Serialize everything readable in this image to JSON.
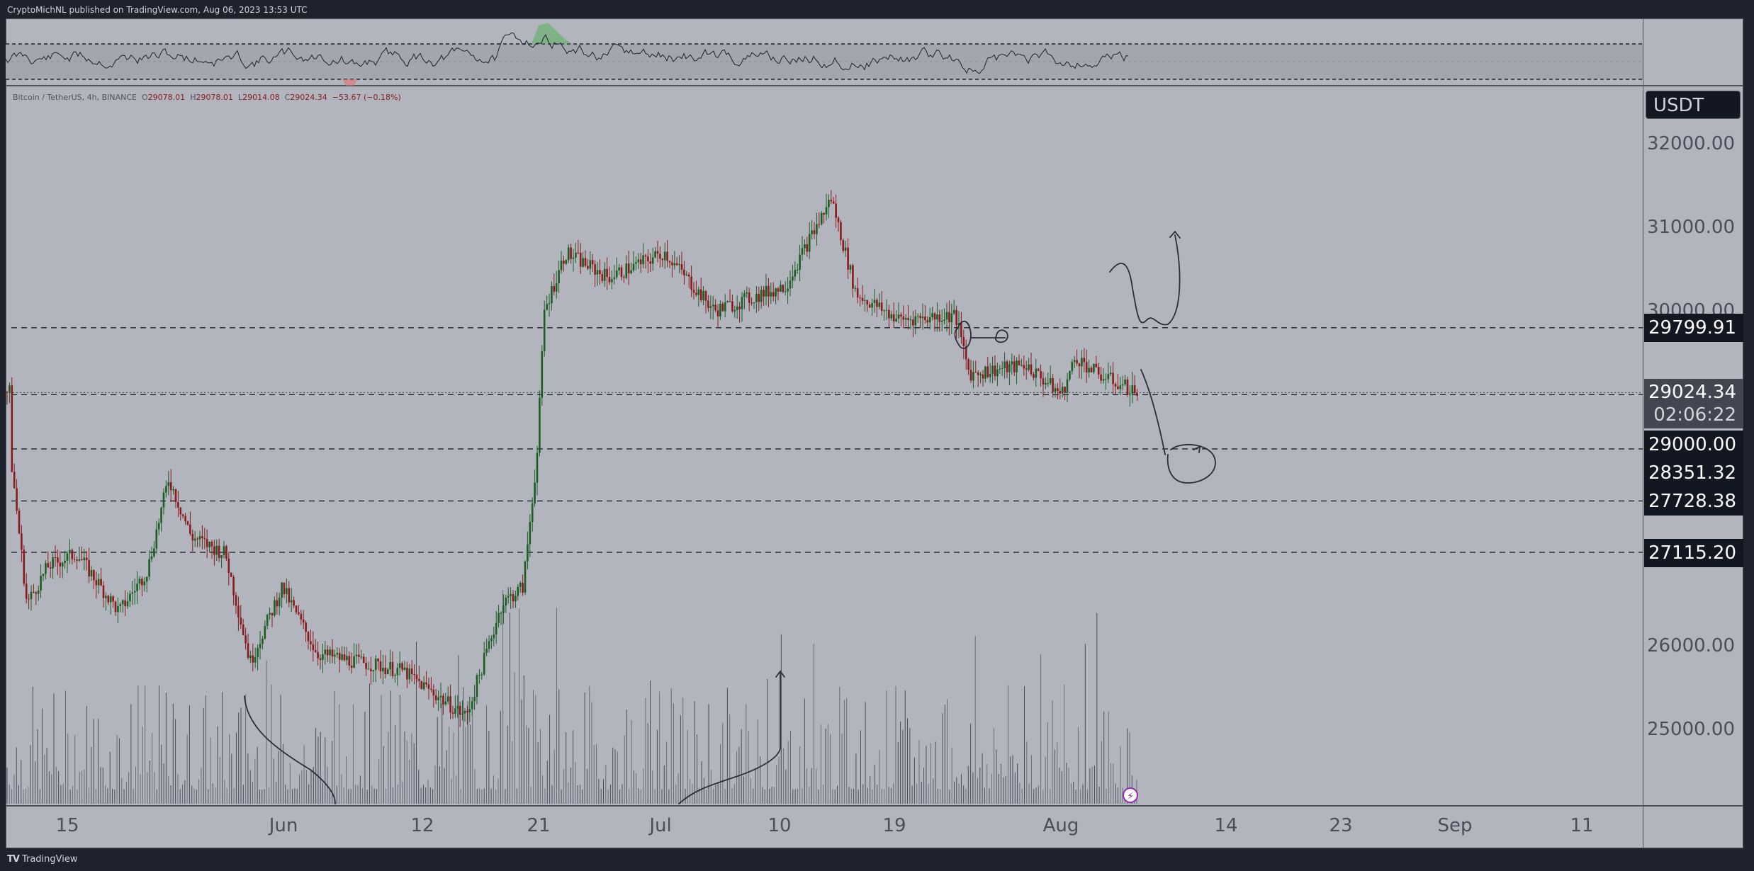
{
  "header": {
    "publisher_line": "CryptoMichNL published on TradingView.com, Aug 06, 2023 13:53 UTC"
  },
  "legend": {
    "symbol": "Bitcoin / TetherUS, 4h, BINANCE",
    "open_label": "O",
    "open": "29078.01",
    "high_label": "H",
    "high": "29078.01",
    "low_label": "L",
    "low": "29014.08",
    "close_label": "C",
    "close": "29024.34",
    "change": "−53.67 (−0.18%)"
  },
  "price_axis": {
    "currency": "USDT",
    "ticks": [
      "32000.00",
      "31000.00",
      "30000.00",
      "26000.00",
      "25000.00"
    ],
    "tags": [
      {
        "value": "29799.91"
      },
      {
        "value": "29024.34",
        "countdown": "02:06:22",
        "current": true
      },
      {
        "value": "29000.00"
      },
      {
        "value": "28351.32"
      },
      {
        "value": "27728.38"
      },
      {
        "value": "27115.20"
      }
    ]
  },
  "time_axis": {
    "ticks": [
      "15",
      "Jun",
      "12",
      "21",
      "Jul",
      "10",
      "19",
      "Aug",
      "14",
      "23",
      "Sep",
      "11"
    ]
  },
  "footer": {
    "brand": "TradingView"
  },
  "colors": {
    "background": "#b2b5be",
    "up": "#1b5e20",
    "down": "#8b1a1a",
    "frame": "#1e222d",
    "drawing": "#2a2e39"
  },
  "chart_data": {
    "type": "candlestick",
    "title": "Bitcoin / TetherUS, 4h, BINANCE",
    "xlabel": "",
    "ylabel": "USDT",
    "ylim": [
      24500,
      32700
    ],
    "x_ticks": [
      "15",
      "Jun",
      "12",
      "21",
      "Jul",
      "10",
      "19",
      "Aug",
      "14",
      "23",
      "Sep",
      "11"
    ],
    "y_ticks": [
      25000,
      26000,
      27000,
      28000,
      29000,
      30000,
      31000,
      32000
    ],
    "horizontal_levels": [
      29799.91,
      29000.0,
      28351.32,
      27728.38,
      27115.2
    ],
    "current_price": 29024.34,
    "path_points": [
      {
        "date": "May 12",
        "close": 28200
      },
      {
        "date": "May 14",
        "close": 26500
      },
      {
        "date": "May 15",
        "close": 26900
      },
      {
        "date": "May 20",
        "close": 27100
      },
      {
        "date": "May 24",
        "close": 26200
      },
      {
        "date": "May 27",
        "close": 26900
      },
      {
        "date": "May 29",
        "close": 28000
      },
      {
        "date": "May 31",
        "close": 27200
      },
      {
        "date": "Jun 3",
        "close": 27100
      },
      {
        "date": "Jun 5",
        "close": 25800
      },
      {
        "date": "Jun 7",
        "close": 26700
      },
      {
        "date": "Jun 10",
        "close": 25900
      },
      {
        "date": "Jun 14",
        "close": 25700
      },
      {
        "date": "Jun 15",
        "close": 25100
      },
      {
        "date": "Jun 17",
        "close": 26500
      },
      {
        "date": "Jun 19",
        "close": 26700
      },
      {
        "date": "Jun 20",
        "close": 28300
      },
      {
        "date": "Jun 21",
        "close": 30000
      },
      {
        "date": "Jun 23",
        "close": 30700
      },
      {
        "date": "Jun 27",
        "close": 30400
      },
      {
        "date": "Jul 1",
        "close": 30600
      },
      {
        "date": "Jul 6",
        "close": 30000
      },
      {
        "date": "Jul 10",
        "close": 30300
      },
      {
        "date": "Jul 13",
        "close": 31300
      },
      {
        "date": "Jul 14",
        "close": 30200
      },
      {
        "date": "Jul 19",
        "close": 29900
      },
      {
        "date": "Jul 23",
        "close": 29900
      },
      {
        "date": "Jul 24",
        "close": 29200
      },
      {
        "date": "Jul 28",
        "close": 29300
      },
      {
        "date": "Aug 1",
        "close": 29400
      },
      {
        "date": "Aug 2",
        "close": 29300
      },
      {
        "date": "Aug 6",
        "close": 29024
      }
    ],
    "rsi": {
      "upper": 70,
      "mid": 50,
      "lower": 30
    },
    "annotations": [
      "hand-drawn W-shape arrow up toward ~31000",
      "hand-drawn arrow down to circle at ~28350",
      "circle + arrow near 29800 retest",
      "volume curve arrows"
    ]
  }
}
